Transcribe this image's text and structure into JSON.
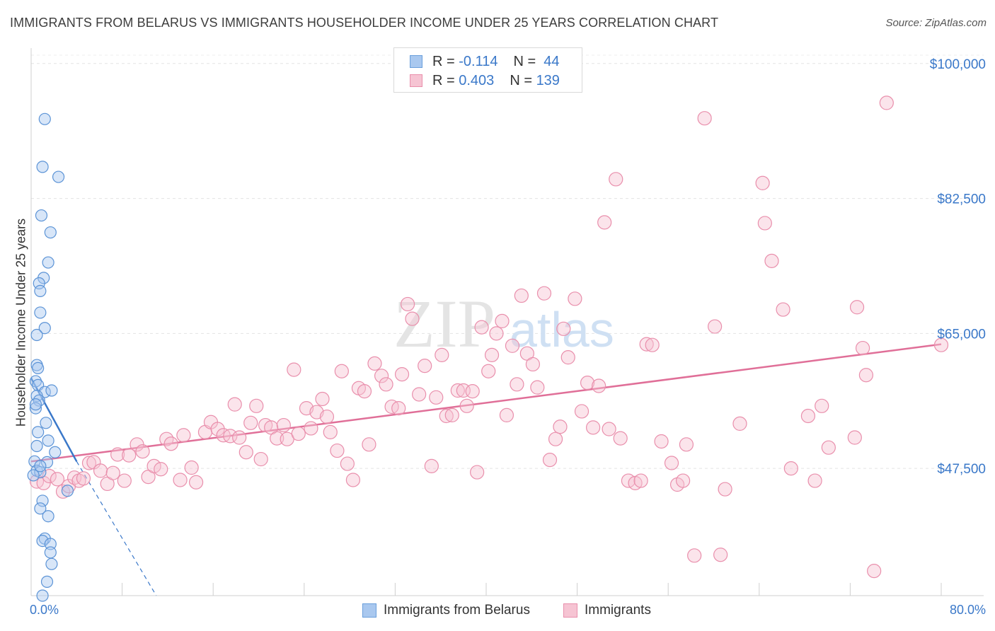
{
  "title": "IMMIGRANTS FROM BELARUS VS IMMIGRANTS HOUSEHOLDER INCOME UNDER 25 YEARS CORRELATION CHART",
  "source": "Source: ZipAtlas.com",
  "watermark": {
    "zip": "ZIP",
    "atlas": "atlas"
  },
  "legend_top": [
    {
      "r_label": "R =",
      "r_value": "-0.114",
      "n_label": "N =",
      "n_value": "44",
      "color": "#a9c8ef",
      "border": "#6a9fdc"
    },
    {
      "r_label": "R =",
      "r_value": "0.403",
      "n_label": "N =",
      "n_value": "139",
      "color": "#f6c4d3",
      "border": "#e98fac"
    }
  ],
  "legend_bottom": [
    {
      "label": "Immigrants from Belarus",
      "color": "#a9c8ef",
      "border": "#6a9fdc"
    },
    {
      "label": "Immigrants",
      "color": "#f6c4d3",
      "border": "#e98fac"
    }
  ],
  "x_axis": {
    "min_label": "0.0%",
    "max_label": "80.0%"
  },
  "chart_data": {
    "type": "scatter",
    "title": "IMMIGRANTS FROM BELARUS VS IMMIGRANTS HOUSEHOLDER INCOME UNDER 25 YEARS CORRELATION CHART",
    "xlabel": "",
    "ylabel": "Householder Income Under 25 years",
    "xlim": [
      0,
      80
    ],
    "ylim": [
      31000,
      102000
    ],
    "y_ticks": [
      {
        "value": 100000,
        "label": "$100,000"
      },
      {
        "value": 82500,
        "label": "$82,500"
      },
      {
        "value": 65000,
        "label": "$65,000"
      },
      {
        "value": 47500,
        "label": "$47,500"
      }
    ],
    "x_ticks": [
      0,
      8,
      16,
      24,
      32,
      40,
      48,
      56,
      64,
      72,
      80
    ],
    "series": [
      {
        "name": "Immigrants from Belarus",
        "color": "#a9c8ef",
        "stroke": "#5b93d6",
        "trend": {
          "x0": 0.0,
          "y0": 59200,
          "x1": 4.0,
          "y1": 48400,
          "dash_to_x": 11.0,
          "dash_to_y": 31000,
          "color": "#3a78c9"
        },
        "points": [
          [
            1.2,
            92800
          ],
          [
            1.0,
            86600
          ],
          [
            2.4,
            85300
          ],
          [
            0.9,
            80300
          ],
          [
            1.7,
            78100
          ],
          [
            1.5,
            74200
          ],
          [
            1.1,
            72200
          ],
          [
            0.7,
            71500
          ],
          [
            0.8,
            70500
          ],
          [
            0.8,
            67700
          ],
          [
            1.2,
            65700
          ],
          [
            0.5,
            64800
          ],
          [
            0.5,
            60900
          ],
          [
            0.6,
            60500
          ],
          [
            0.4,
            58800
          ],
          [
            0.6,
            58300
          ],
          [
            1.2,
            57400
          ],
          [
            1.8,
            57600
          ],
          [
            0.5,
            56900
          ],
          [
            0.7,
            56300
          ],
          [
            0.4,
            55300
          ],
          [
            1.3,
            53400
          ],
          [
            0.6,
            52200
          ],
          [
            1.5,
            51100
          ],
          [
            0.5,
            50400
          ],
          [
            2.1,
            49600
          ],
          [
            0.3,
            48400
          ],
          [
            1.4,
            48300
          ],
          [
            0.5,
            47200
          ],
          [
            0.8,
            47000
          ],
          [
            0.2,
            46600
          ],
          [
            3.2,
            44600
          ],
          [
            1.0,
            43300
          ],
          [
            0.8,
            42300
          ],
          [
            1.5,
            41300
          ],
          [
            1.2,
            38400
          ],
          [
            1.0,
            38100
          ],
          [
            1.7,
            37700
          ],
          [
            1.7,
            36600
          ],
          [
            1.8,
            35100
          ],
          [
            1.4,
            32800
          ],
          [
            1.0,
            31000
          ],
          [
            0.8,
            47800
          ],
          [
            0.4,
            55800
          ]
        ]
      },
      {
        "name": "Immigrants",
        "color": "#f6c4d3",
        "stroke": "#e98fac",
        "trend": {
          "x0": 0.0,
          "y0": 48400,
          "x1": 80.0,
          "y1": 63600,
          "color": "#e06f98"
        },
        "points": [
          [
            0.5,
            45800
          ],
          [
            1.1,
            45600
          ],
          [
            1.6,
            46500
          ],
          [
            2.3,
            46100
          ],
          [
            2.8,
            44500
          ],
          [
            3.3,
            45200
          ],
          [
            3.8,
            46300
          ],
          [
            4.2,
            45900
          ],
          [
            4.6,
            46200
          ],
          [
            5.1,
            48200
          ],
          [
            5.5,
            48300
          ],
          [
            6.1,
            47200
          ],
          [
            6.7,
            45500
          ],
          [
            7.2,
            46900
          ],
          [
            7.6,
            49300
          ],
          [
            8.2,
            45900
          ],
          [
            8.6,
            49200
          ],
          [
            9.3,
            50600
          ],
          [
            9.8,
            49700
          ],
          [
            10.3,
            46400
          ],
          [
            10.8,
            47800
          ],
          [
            11.4,
            47400
          ],
          [
            11.9,
            51300
          ],
          [
            12.3,
            50700
          ],
          [
            13.1,
            46000
          ],
          [
            13.4,
            51800
          ],
          [
            14.1,
            47600
          ],
          [
            14.5,
            45700
          ],
          [
            15.3,
            52200
          ],
          [
            15.8,
            53500
          ],
          [
            16.4,
            52600
          ],
          [
            16.9,
            51800
          ],
          [
            17.5,
            51700
          ],
          [
            17.9,
            55800
          ],
          [
            18.3,
            51500
          ],
          [
            18.9,
            49600
          ],
          [
            19.3,
            53400
          ],
          [
            19.8,
            55600
          ],
          [
            20.2,
            48700
          ],
          [
            20.6,
            53100
          ],
          [
            21.1,
            52800
          ],
          [
            21.6,
            51400
          ],
          [
            22.2,
            53100
          ],
          [
            22.5,
            51300
          ],
          [
            23.1,
            60300
          ],
          [
            23.5,
            52000
          ],
          [
            24.2,
            55300
          ],
          [
            24.6,
            52700
          ],
          [
            25.1,
            54800
          ],
          [
            25.6,
            56500
          ],
          [
            26.0,
            54200
          ],
          [
            26.3,
            52200
          ],
          [
            26.9,
            49800
          ],
          [
            27.3,
            60100
          ],
          [
            27.8,
            48100
          ],
          [
            28.3,
            46000
          ],
          [
            28.8,
            57900
          ],
          [
            29.3,
            57500
          ],
          [
            29.7,
            50600
          ],
          [
            30.2,
            61100
          ],
          [
            30.8,
            59500
          ],
          [
            31.2,
            58400
          ],
          [
            31.7,
            55500
          ],
          [
            32.3,
            55300
          ],
          [
            32.6,
            59700
          ],
          [
            33.1,
            68800
          ],
          [
            33.5,
            66900
          ],
          [
            34.1,
            57100
          ],
          [
            34.6,
            60800
          ],
          [
            35.2,
            47800
          ],
          [
            35.6,
            56700
          ],
          [
            36.1,
            62200
          ],
          [
            36.5,
            54300
          ],
          [
            37.0,
            54400
          ],
          [
            37.5,
            57600
          ],
          [
            38.0,
            57600
          ],
          [
            38.3,
            55600
          ],
          [
            38.8,
            57500
          ],
          [
            39.2,
            47000
          ],
          [
            39.6,
            65800
          ],
          [
            40.2,
            60100
          ],
          [
            40.5,
            62200
          ],
          [
            40.9,
            65000
          ],
          [
            41.4,
            66600
          ],
          [
            41.8,
            54400
          ],
          [
            42.3,
            63400
          ],
          [
            42.7,
            58400
          ],
          [
            43.1,
            69900
          ],
          [
            43.6,
            62400
          ],
          [
            44.1,
            61000
          ],
          [
            44.5,
            58000
          ],
          [
            45.1,
            70200
          ],
          [
            45.6,
            48600
          ],
          [
            46.1,
            51300
          ],
          [
            46.5,
            52900
          ],
          [
            46.8,
            65600
          ],
          [
            47.2,
            61900
          ],
          [
            47.8,
            69500
          ],
          [
            48.4,
            54900
          ],
          [
            48.9,
            58600
          ],
          [
            49.4,
            52800
          ],
          [
            49.9,
            58200
          ],
          [
            50.4,
            79400
          ],
          [
            50.8,
            52600
          ],
          [
            51.4,
            85000
          ],
          [
            51.8,
            51400
          ],
          [
            52.5,
            45900
          ],
          [
            53.1,
            45600
          ],
          [
            53.6,
            45900
          ],
          [
            54.1,
            63600
          ],
          [
            54.6,
            63500
          ],
          [
            55.4,
            51000
          ],
          [
            56.3,
            48200
          ],
          [
            56.8,
            45400
          ],
          [
            57.3,
            45900
          ],
          [
            57.6,
            50600
          ],
          [
            58.3,
            36200
          ],
          [
            59.2,
            92900
          ],
          [
            60.1,
            65900
          ],
          [
            60.6,
            36300
          ],
          [
            61.0,
            44800
          ],
          [
            62.3,
            53300
          ],
          [
            64.3,
            84500
          ],
          [
            64.5,
            79300
          ],
          [
            65.1,
            74400
          ],
          [
            66.1,
            68100
          ],
          [
            66.8,
            47500
          ],
          [
            68.3,
            54300
          ],
          [
            68.9,
            45900
          ],
          [
            69.5,
            55600
          ],
          [
            70.1,
            50200
          ],
          [
            72.4,
            51500
          ],
          [
            72.6,
            68400
          ],
          [
            73.1,
            63100
          ],
          [
            73.4,
            59600
          ],
          [
            74.1,
            34200
          ],
          [
            75.2,
            94900
          ],
          [
            80.0,
            63500
          ]
        ]
      }
    ]
  }
}
